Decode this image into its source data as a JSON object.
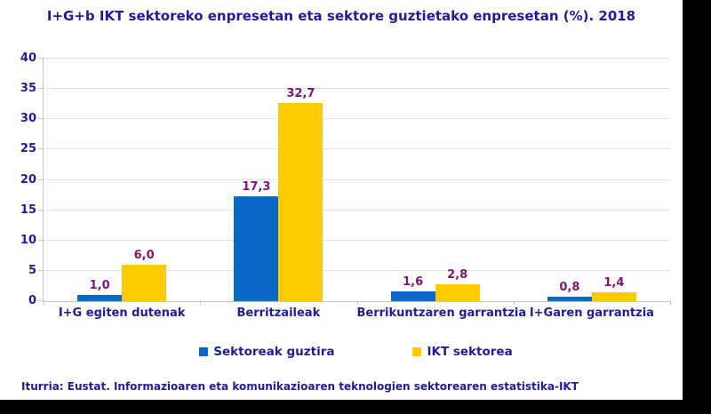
{
  "title": "I+G+b IKT sektoreko enpresetan eta sektore guztietako enpresetan (%). 2018",
  "footer": "Iturria: Eustat. Informazioaren eta komunikazioaren teknologien sektorearen estatistika-IKT",
  "colors": {
    "background": "#ffffff",
    "canvas_padding": "#000000",
    "title_text": "#221c94",
    "axis_text": "#221c94",
    "value_label_text": "#7b156f",
    "gridline": "#e3e3e3",
    "axis_line": "#c4c4c4",
    "series_blue": "#0868c8",
    "series_yellow": "#ffcb00"
  },
  "chart_data": {
    "type": "bar",
    "title": "I+G+b IKT sektoreko enpresetan eta sektore guztietako enpresetan (%). 2018",
    "xlabel": "",
    "ylabel": "",
    "categories": [
      "I+G egiten dutenak",
      "Berritzaileak",
      "Berrikuntzaren garrantzia",
      "I+Garen garrantzia"
    ],
    "series": [
      {
        "name": "Sektoreak guztira",
        "color": "#0868c8",
        "values": [
          1.0,
          17.3,
          1.6,
          0.8
        ],
        "labels": [
          "1,0",
          "17,3",
          "1,6",
          "0,8"
        ]
      },
      {
        "name": "IKT sektorea",
        "color": "#ffcb00",
        "values": [
          6.0,
          32.7,
          2.8,
          1.4
        ],
        "labels": [
          "6,0",
          "32,7",
          "2,8",
          "1,4"
        ]
      }
    ],
    "ylim": [
      0,
      40
    ],
    "ytick_step": 5,
    "ytick_labels": [
      "0",
      "5",
      "10",
      "15",
      "20",
      "25",
      "30",
      "35",
      "40"
    ],
    "grid": true,
    "legend_position": "bottom"
  }
}
